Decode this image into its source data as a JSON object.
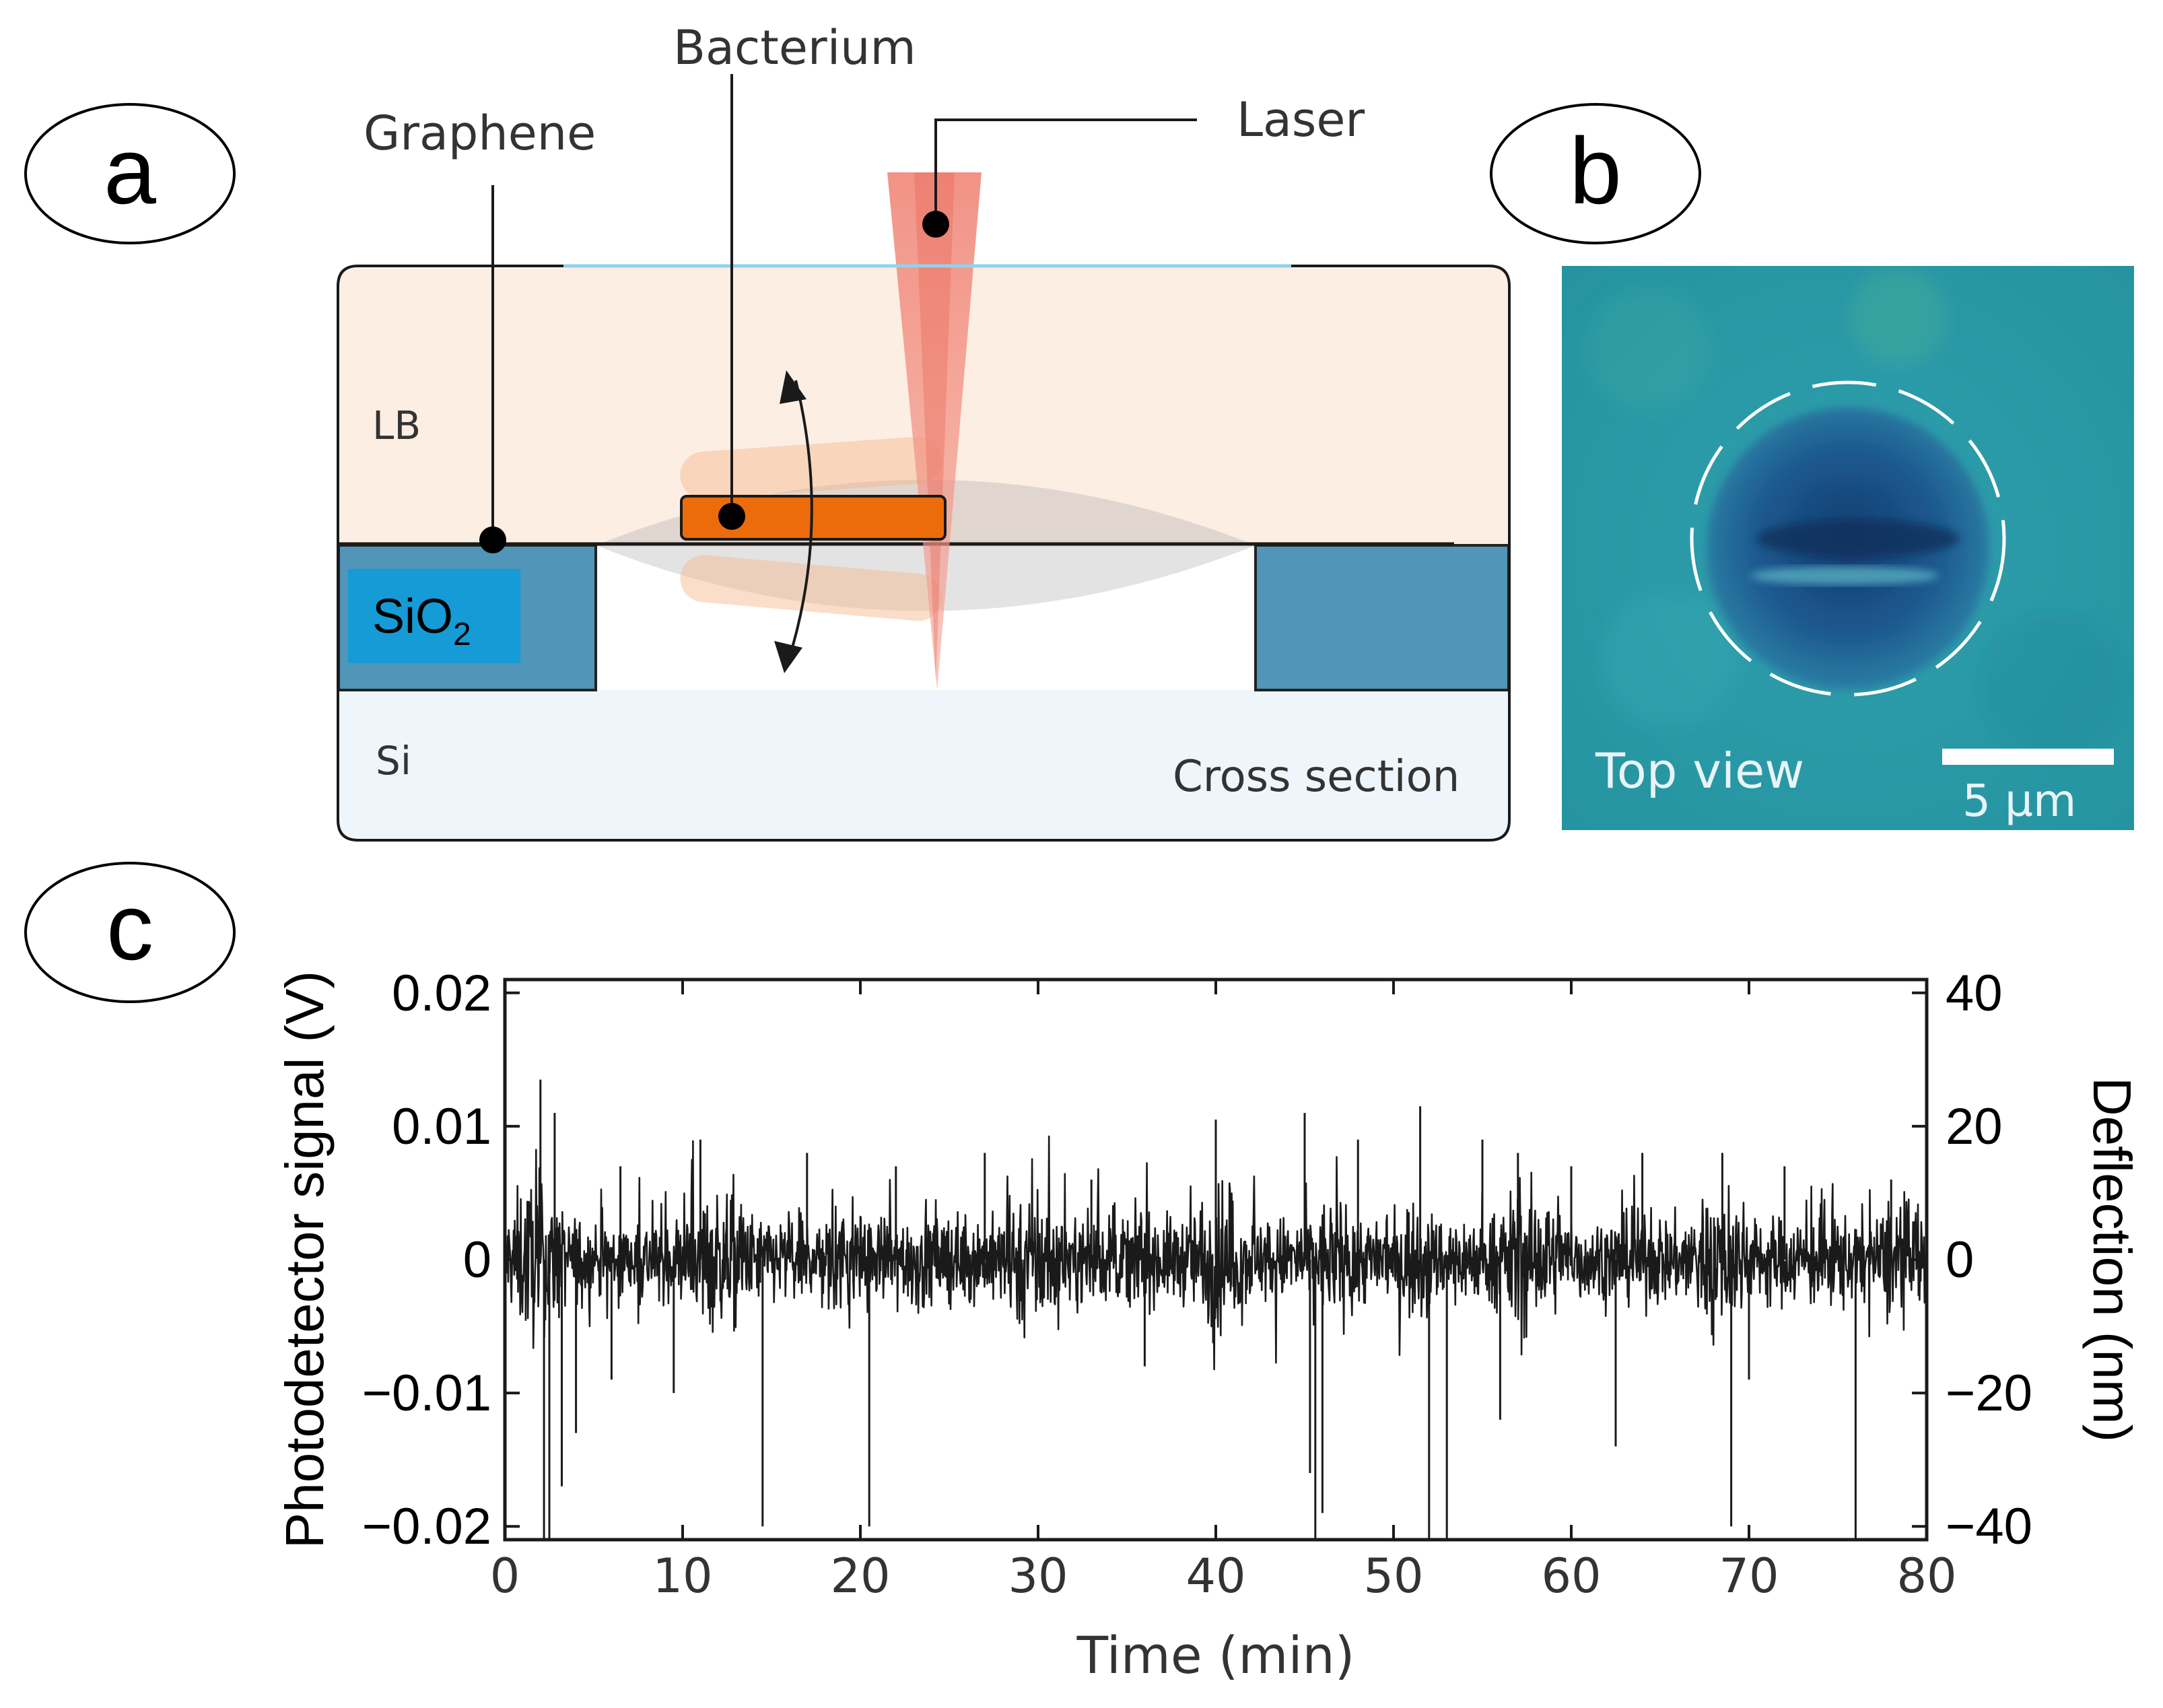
{
  "panels": {
    "a": {
      "letter": "a"
    },
    "b": {
      "letter": "b"
    },
    "c": {
      "letter": "c"
    }
  },
  "diagram": {
    "labels": {
      "bacterium": "Bacterium",
      "laser": "Laser",
      "graphene": "Graphene",
      "lb": "LB",
      "sio2_base": "SiO",
      "sio2_sub": "2",
      "si": "Si",
      "cross_section": "Cross section"
    },
    "colors": {
      "lb_medium": "#fdeee3",
      "sio2": "#5195b8",
      "sio2_label_box": "#159bd6",
      "si": "#eef6fb",
      "bacterium": "#ec6c0b",
      "laser": "#f08a7a",
      "graphene_top": "#8fd3ee"
    }
  },
  "micrograph": {
    "view_label": "Top view",
    "scale_label": "5 µm",
    "colors": {
      "background": "#2a9aa6",
      "hole": "#184f86"
    }
  },
  "chart_data": {
    "type": "line",
    "xlabel": "Time (min)",
    "ylabel_left": "Photodetector signal (V)",
    "ylabel_right": "Deflection (nm)",
    "xlim": [
      0,
      80
    ],
    "ylim_left": [
      -0.021,
      0.021
    ],
    "ylim_right": [
      -42,
      42
    ],
    "x_ticks": [
      0,
      10,
      20,
      30,
      40,
      50,
      60,
      70,
      80
    ],
    "x_tick_labels": [
      "0",
      "10",
      "20",
      "30",
      "40",
      "50",
      "60",
      "70",
      "80"
    ],
    "y_ticks_left": [
      0.02,
      0.01,
      0,
      -0.01,
      -0.02
    ],
    "y_tick_labels_left": [
      "0.02",
      "0.01",
      "0",
      "−0.01",
      "−0.02"
    ],
    "y_ticks_right": [
      40,
      20,
      0,
      -20,
      -40
    ],
    "y_tick_labels_right": [
      "40",
      "20",
      "0",
      "−20",
      "−40"
    ],
    "series": [
      {
        "name": "Photodetector signal",
        "color": "#1a1a1a",
        "noise_baseline_V": 0.0016,
        "spikes": [
          {
            "t": 2.0,
            "v": 0.0135
          },
          {
            "t": 2.2,
            "v": -0.021
          },
          {
            "t": 2.5,
            "v": -0.021
          },
          {
            "t": 2.8,
            "v": 0.011
          },
          {
            "t": 3.2,
            "v": -0.017
          },
          {
            "t": 4.0,
            "v": -0.013
          },
          {
            "t": 6.0,
            "v": -0.009
          },
          {
            "t": 6.5,
            "v": 0.007
          },
          {
            "t": 9.5,
            "v": -0.01
          },
          {
            "t": 11.0,
            "v": 0.009
          },
          {
            "t": 14.5,
            "v": -0.02
          },
          {
            "t": 17.0,
            "v": 0.008
          },
          {
            "t": 20.5,
            "v": -0.02
          },
          {
            "t": 22.0,
            "v": 0.007
          },
          {
            "t": 27.0,
            "v": 0.008
          },
          {
            "t": 33.0,
            "v": 0.006
          },
          {
            "t": 36.0,
            "v": -0.008
          },
          {
            "t": 40.0,
            "v": 0.0105
          },
          {
            "t": 45.0,
            "v": 0.011
          },
          {
            "t": 45.3,
            "v": -0.016
          },
          {
            "t": 45.6,
            "v": -0.021
          },
          {
            "t": 46.0,
            "v": -0.019
          },
          {
            "t": 48.0,
            "v": 0.009
          },
          {
            "t": 51.5,
            "v": 0.0115
          },
          {
            "t": 52.0,
            "v": -0.021
          },
          {
            "t": 53.0,
            "v": -0.021
          },
          {
            "t": 55.0,
            "v": 0.009
          },
          {
            "t": 56.0,
            "v": -0.012
          },
          {
            "t": 57.0,
            "v": 0.008
          },
          {
            "t": 60.0,
            "v": 0.007
          },
          {
            "t": 62.5,
            "v": -0.014
          },
          {
            "t": 64.0,
            "v": 0.008
          },
          {
            "t": 68.5,
            "v": 0.008
          },
          {
            "t": 69.0,
            "v": -0.02
          },
          {
            "t": 70.0,
            "v": -0.009
          },
          {
            "t": 72.0,
            "v": 0.007
          },
          {
            "t": 76.0,
            "v": -0.021
          },
          {
            "t": 78.0,
            "v": 0.006
          }
        ]
      }
    ]
  }
}
